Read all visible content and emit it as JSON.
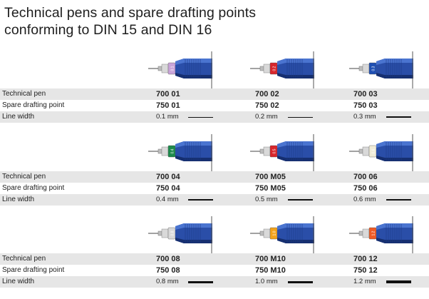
{
  "title": {
    "line1": "Technical pens and spare drafting points",
    "line2": "conforming to DIN 15 and DIN 16"
  },
  "row_labels": {
    "pen": "Technical pen",
    "point": "Spare drafting point",
    "width": "Line width"
  },
  "groups": [
    {
      "items": [
        {
          "pen": "700 01",
          "point": "750 01",
          "width": "0.1 mm",
          "band_color": "#c9a4d9",
          "band_text": "0.1"
        },
        {
          "pen": "700 02",
          "point": "750 02",
          "width": "0.2 mm",
          "band_color": "#d8262c",
          "band_text": "0.2"
        },
        {
          "pen": "700 03",
          "point": "750 03",
          "width": "0.3 mm",
          "band_color": "#1f4fb3",
          "band_text": "0.3"
        }
      ]
    },
    {
      "items": [
        {
          "pen": "700 04",
          "point": "750 04",
          "width": "0.4 mm",
          "band_color": "#1d8a4c",
          "band_text": "0.4"
        },
        {
          "pen": "700 M05",
          "point": "750 M05",
          "width": "0.5 mm",
          "band_color": "#d8262c",
          "band_text": "0.5"
        },
        {
          "pen": "700 06",
          "point": "750 06",
          "width": "0.6 mm",
          "band_color": "#f0ecd8",
          "band_text": "0.6"
        }
      ]
    },
    {
      "items": [
        {
          "pen": "700 08",
          "point": "750 08",
          "width": "0.8 mm",
          "band_color": "#d9d9d9",
          "band_text": "0.8"
        },
        {
          "pen": "700 M10",
          "point": "750 M10",
          "width": "1.0 mm",
          "band_color": "#f2a21a",
          "band_text": "1.0"
        },
        {
          "pen": "700 12",
          "point": "750 12",
          "width": "1.2 mm",
          "band_color": "#ef5a24",
          "band_text": "1.2"
        }
      ]
    }
  ]
}
